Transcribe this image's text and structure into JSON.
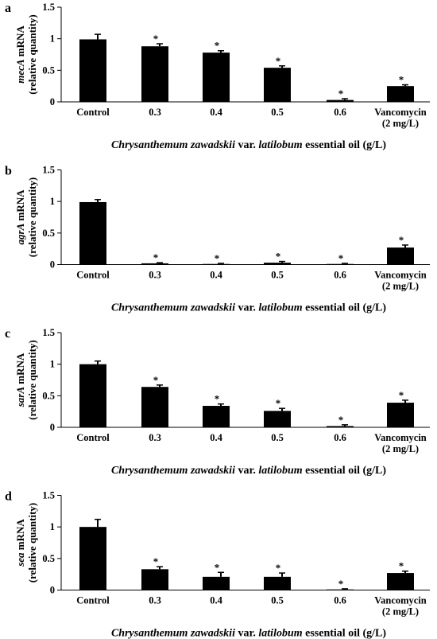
{
  "chart_data": [
    {
      "type": "bar",
      "panel_label": "a",
      "categories": [
        "Control",
        "0.3",
        "0.4",
        "0.5",
        "0.6",
        "Vancomycin|(2 mg/L)"
      ],
      "values": [
        0.99,
        0.88,
        0.78,
        0.54,
        0.03,
        0.25
      ],
      "errors": [
        0.08,
        0.04,
        0.03,
        0.03,
        0.02,
        0.02
      ],
      "significant": [
        false,
        true,
        true,
        true,
        true,
        true
      ],
      "significance_marker": "*",
      "ylabel_gene": "mecA",
      "ylabel_suffix": " mRNA",
      "ylabel_line2": "(relative quantity)",
      "xlabel": {
        "species": "Chrysanthemum zawadskii",
        "var_text": " var. ",
        "variety": "latilobum",
        "rest": " essential oil (g/L)"
      },
      "ylim": [
        0,
        1.5
      ],
      "yticks": [
        "0",
        "0.5",
        "1",
        "1.5"
      ],
      "colors": {
        "bar": "#000000"
      }
    },
    {
      "type": "bar",
      "panel_label": "b",
      "categories": [
        "Control",
        "0.3",
        "0.4",
        "0.5",
        "0.6",
        "Vancomycin|(2 mg/L)"
      ],
      "values": [
        0.99,
        0.02,
        0.01,
        0.03,
        0.01,
        0.27
      ],
      "errors": [
        0.04,
        0.01,
        0.01,
        0.02,
        0.01,
        0.04
      ],
      "significant": [
        false,
        true,
        true,
        true,
        true,
        true
      ],
      "significance_marker": "*",
      "ylabel_gene": "agrA",
      "ylabel_suffix": " mRNA",
      "ylabel_line2": "(relative quantity)",
      "xlabel": {
        "species": "Chrysanthemum zawadskii",
        "var_text": " var. ",
        "variety": "latilobum",
        "rest": " essential oil (g/L)"
      },
      "ylim": [
        0,
        1.5
      ],
      "yticks": [
        "0",
        "0.5",
        "1",
        "1.5"
      ],
      "colors": {
        "bar": "#000000"
      }
    },
    {
      "type": "bar",
      "panel_label": "c",
      "categories": [
        "Control",
        "0.3",
        "0.4",
        "0.5",
        "0.6",
        "Vancomycin|(2 mg/L)"
      ],
      "values": [
        1.0,
        0.64,
        0.34,
        0.26,
        0.02,
        0.39
      ],
      "errors": [
        0.05,
        0.03,
        0.03,
        0.04,
        0.02,
        0.04
      ],
      "significant": [
        false,
        true,
        true,
        true,
        true,
        true
      ],
      "significance_marker": "*",
      "ylabel_gene": "sarA",
      "ylabel_suffix": " mRNA",
      "ylabel_line2": "(relative quantity)",
      "xlabel": {
        "species": "Chrysanthemum zawadskii",
        "var_text": " var. ",
        "variety": "latilobum",
        "rest": " essential oil (g/L)"
      },
      "ylim": [
        0,
        1.5
      ],
      "yticks": [
        "0",
        "0.5",
        "1",
        "1.5"
      ],
      "colors": {
        "bar": "#000000"
      }
    },
    {
      "type": "bar",
      "panel_label": "d",
      "categories": [
        "Control",
        "0.3",
        "0.4",
        "0.5",
        "0.6",
        "Vancomycin|(2 mg/L)"
      ],
      "values": [
        1.0,
        0.33,
        0.21,
        0.21,
        0.01,
        0.27
      ],
      "errors": [
        0.12,
        0.04,
        0.07,
        0.06,
        0.01,
        0.03
      ],
      "significant": [
        false,
        true,
        true,
        true,
        true,
        true
      ],
      "significance_marker": "*",
      "ylabel_gene": "sea",
      "ylabel_suffix": " mRNA",
      "ylabel_line2": "(relative quantity)",
      "xlabel": {
        "species": "Chrysanthemum zawadskii",
        "var_text": " var. ",
        "variety": "latilobum",
        "rest": " essential oil (g/L)"
      },
      "ylim": [
        0,
        1.5
      ],
      "yticks": [
        "0",
        "0.5",
        "1",
        "1.5"
      ],
      "colors": {
        "bar": "#000000"
      }
    }
  ]
}
